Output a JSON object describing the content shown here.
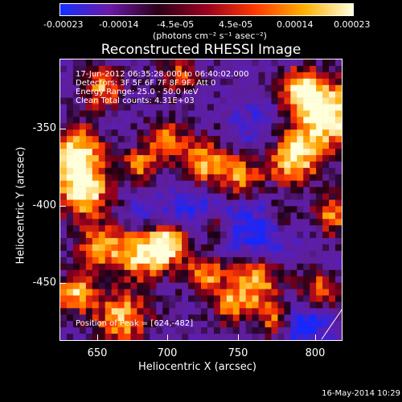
{
  "colorbar": {
    "tick_labels": [
      "-0.00023",
      "-0.00014",
      "-4.5e-05",
      "4.5e-05",
      "0.00014",
      "0.00023"
    ],
    "units": "(photons cm⁻² s⁻¹ asec⁻²)",
    "colors": [
      "#1530ff",
      "#6a1aa8",
      "#2a0018",
      "#9a0020",
      "#ff3a00",
      "#ffb000",
      "#ffffe0"
    ]
  },
  "title": "Reconstructed RHESSI Image",
  "info": {
    "line1": "17-Jun-2012 06:35:28.000 to 06:40:02.000",
    "line2": "Detectors: 3F 5F 6F 7F 8F 9F, Att 0",
    "line3": "Energy Range: 25.0 - 50.0 keV",
    "line4": "Clean     Total counts: 4.31E+03",
    "peak": "Position of Peak = [624,-482]"
  },
  "x_axis": {
    "label": "Heliocentric X (arcsec)",
    "tick_labels": [
      "650",
      "700",
      "750",
      "800"
    ]
  },
  "y_axis": {
    "label": "Heliocentric Y (arcsec)",
    "tick_labels": [
      "-350",
      "-400",
      "-450"
    ]
  },
  "footer": {
    "timestamp": "16-May-2014 10:29"
  },
  "chart_data": {
    "type": "heatmap",
    "title": "Reconstructed RHESSI Image",
    "xlabel": "Heliocentric X (arcsec)",
    "ylabel": "Heliocentric Y (arcsec)",
    "xlim": [
      625,
      815
    ],
    "ylim": [
      -490,
      -310
    ],
    "clim": [
      -0.00023,
      0.00023
    ],
    "xticks": [
      650,
      700,
      750,
      800
    ],
    "yticks": [
      -350,
      -400,
      -450
    ],
    "peak": [
      624,
      -482
    ],
    "colormap": "blue-purple-black-red-yellow-white"
  }
}
